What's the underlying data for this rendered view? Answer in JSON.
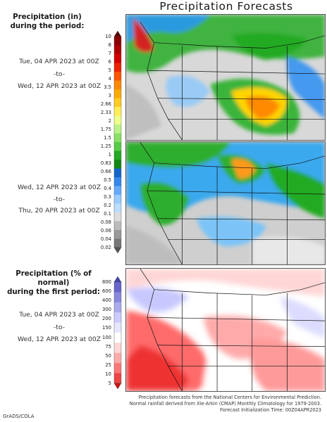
{
  "title": "Precipitation Forecasts",
  "section1": {
    "heading_line1": "Precipitation (in)",
    "heading_line2": "during the period:",
    "period_a": {
      "start": "Tue, 04 APR 2023 at 00Z",
      "sep": "-to-",
      "end": "Wed, 12 APR 2023 at 00Z"
    },
    "period_b": {
      "start": "Wed, 12 APR 2023 at 00Z",
      "sep": "-to-",
      "end": "Thu, 20 APR 2023 at 00Z"
    },
    "scale": {
      "labels": [
        "10",
        "8",
        "7",
        "6",
        "5",
        "4",
        "3.5",
        "3",
        "2.66",
        "2.33",
        "2",
        "1.75",
        "1.5",
        "1.25",
        "1",
        "0.83",
        "0.66",
        "0.5",
        "0.4",
        "0.3",
        "0.2",
        "0.1",
        "0.08",
        "0.06",
        "0.04",
        "0.02"
      ],
      "colors": [
        "#5a0000",
        "#8b0000",
        "#b00000",
        "#d40000",
        "#ee2200",
        "#ff5500",
        "#ff8800",
        "#ffaa00",
        "#ffcc22",
        "#ffee55",
        "#eeff88",
        "#bbf288",
        "#88e066",
        "#55cc44",
        "#22aa22",
        "#118811",
        "#1166cc",
        "#3388ee",
        "#66aaff",
        "#99ccff",
        "#bbddff",
        "#dddddd",
        "#bbbbbb",
        "#999999",
        "#777777",
        "#555555"
      ]
    }
  },
  "section2": {
    "heading_line1": "Precipitation (% of normal)",
    "heading_line2": "during the first period:",
    "period": {
      "start": "Tue, 04 APR 2023 at 00Z",
      "sep": "-to-",
      "end": "Wed, 12 APR 2023 at 00Z"
    },
    "scale": {
      "labels": [
        "800",
        "600",
        "400",
        "300",
        "200",
        "150",
        "100",
        "75",
        "50",
        "25",
        "10",
        "5"
      ],
      "colors": [
        "#4444aa",
        "#6666cc",
        "#8888dd",
        "#aaaaee",
        "#ccccff",
        "#e6e6ff",
        "#ffffff",
        "#ffd6d6",
        "#ffaaaa",
        "#ff7777",
        "#ee4444",
        "#cc1111"
      ]
    }
  },
  "footer": {
    "line1": "Precipitation forecasts from the National Centers for Environmental Prediction.",
    "line2": "Normal rainfall derived from Xie-Arkin (CMAP) Monthly Climatology for 1979-2003.",
    "line3": "Forecast Initialization Time: 00Z04APR2023"
  },
  "credit": "GrADS/COLA"
}
